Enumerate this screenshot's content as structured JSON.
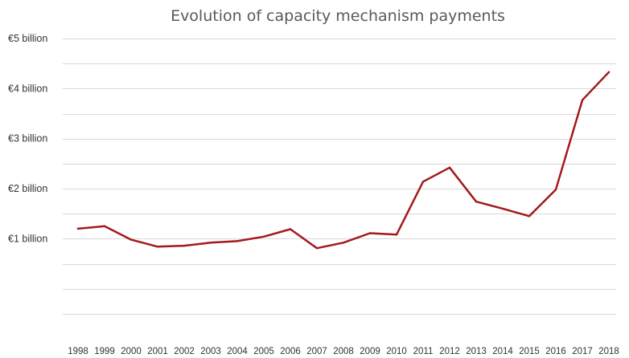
{
  "chart_data": {
    "type": "line",
    "title": "Evolution of capacity mechanism payments",
    "xlabel": "",
    "ylabel": "",
    "x": [
      "1998",
      "1999",
      "2000",
      "2001",
      "2002",
      "2003",
      "2004",
      "2005",
      "2006",
      "2007",
      "2008",
      "2009",
      "2010",
      "2011",
      "2012",
      "2013",
      "2014",
      "2015",
      "2016",
      "2017",
      "2018"
    ],
    "series": [
      {
        "name": "",
        "color": "#a3191c",
        "values": [
          1.2,
          1.25,
          0.98,
          0.84,
          0.86,
          0.92,
          0.95,
          1.04,
          1.19,
          0.81,
          0.92,
          1.11,
          1.08,
          2.14,
          2.42,
          1.74,
          1.6,
          1.45,
          1.98,
          3.77,
          4.33
        ]
      }
    ],
    "ylim": [
      -1.0,
      5.0
    ],
    "ytick_values": [
      1,
      2,
      3,
      4,
      5
    ],
    "ytick_labels": [
      "€1 billion",
      "€2 billion",
      "€3 billion",
      "€4 billion",
      "€5 billion"
    ],
    "grid_values": [
      -0.5,
      0,
      0.5,
      1,
      1.5,
      2,
      2.5,
      3,
      3.5,
      4,
      4.5,
      5
    ],
    "grid": true,
    "legend": "none"
  }
}
